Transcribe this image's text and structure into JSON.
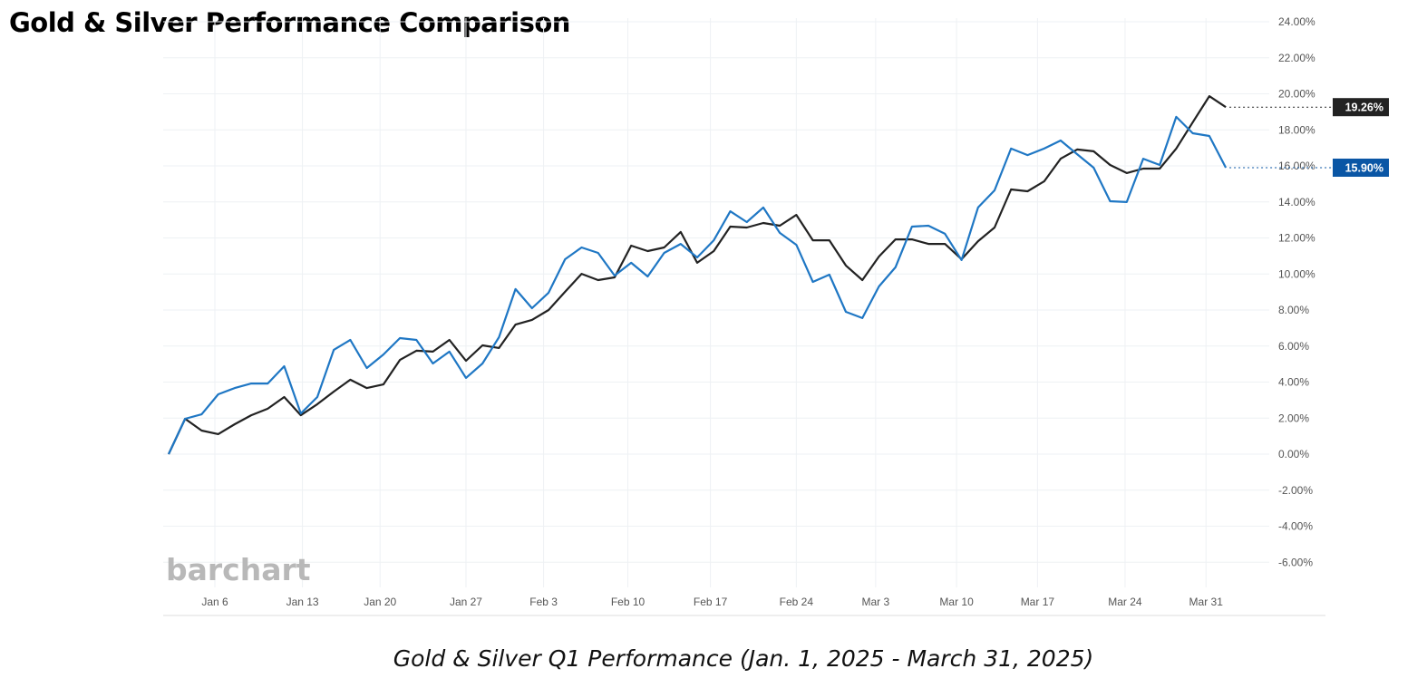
{
  "chart_data": {
    "type": "line",
    "title": "Gold & Silver Performance Comparison",
    "caption": "Gold & Silver Q1 Performance (Jan. 1, 2025 - March 31, 2025)",
    "watermark": "barchart",
    "ylim": [
      -6,
      24
    ],
    "y_ticks": [
      -6,
      -4,
      -2,
      0,
      2,
      4,
      6,
      8,
      10,
      12,
      14,
      16,
      18,
      20,
      22,
      24
    ],
    "y_tick_format": "percent_2dp",
    "x_ticks": [
      {
        "label": "Jan 6",
        "index": 2.8
      },
      {
        "label": "Jan 13",
        "index": 8.1
      },
      {
        "label": "Jan 20",
        "index": 12.8
      },
      {
        "label": "Jan 27",
        "index": 18.0
      },
      {
        "label": "Feb 3",
        "index": 22.7
      },
      {
        "label": "Feb 10",
        "index": 27.8
      },
      {
        "label": "Feb 17",
        "index": 32.8
      },
      {
        "label": "Feb 24",
        "index": 38.0
      },
      {
        "label": "Mar 3",
        "index": 42.8
      },
      {
        "label": "Mar 10",
        "index": 47.7
      },
      {
        "label": "Mar 17",
        "index": 52.6
      },
      {
        "label": "Mar 24",
        "index": 57.9
      },
      {
        "label": "Mar 31",
        "index": 62.8
      }
    ],
    "grid": true,
    "series": [
      {
        "color": "#222222",
        "last_label": "19.26%",
        "values": [
          0,
          1.96,
          1.31,
          1.11,
          1.66,
          2.16,
          2.52,
          3.17,
          2.16,
          2.77,
          3.47,
          4.13,
          3.67,
          3.87,
          5.23,
          5.74,
          5.69,
          6.34,
          5.18,
          6.04,
          5.89,
          7.19,
          7.45,
          8.0,
          9.01,
          10.01,
          9.66,
          9.81,
          11.57,
          11.27,
          11.47,
          12.33,
          10.62,
          11.27,
          12.63,
          12.58,
          12.83,
          12.68,
          13.28,
          11.87,
          11.87,
          10.47,
          9.66,
          10.97,
          11.92,
          11.92,
          11.67,
          11.67,
          10.82,
          11.82,
          12.58,
          14.69,
          14.59,
          15.14,
          16.4,
          16.91,
          16.81,
          16.05,
          15.6,
          15.85,
          15.85,
          16.96,
          18.42,
          19.87,
          19.26
        ]
      },
      {
        "color": "#1f77c4",
        "label_bg": "#0a56a5",
        "last_label": "15.90%",
        "values": [
          0,
          1.96,
          2.21,
          3.32,
          3.67,
          3.92,
          3.92,
          4.88,
          2.26,
          3.17,
          5.79,
          6.34,
          4.78,
          5.53,
          6.44,
          6.34,
          5.03,
          5.69,
          4.23,
          5.03,
          6.49,
          9.16,
          8.1,
          8.96,
          10.82,
          11.47,
          11.17,
          9.91,
          10.62,
          9.86,
          11.17,
          11.67,
          10.92,
          11.87,
          13.48,
          12.88,
          13.69,
          12.28,
          11.62,
          9.56,
          9.96,
          7.9,
          7.55,
          9.31,
          10.37,
          12.63,
          12.68,
          12.23,
          10.77,
          13.69,
          14.64,
          16.96,
          16.6,
          16.96,
          17.41,
          16.65,
          15.9,
          14.04,
          13.99,
          16.4,
          16.05,
          18.72,
          17.81,
          17.66,
          15.9
        ]
      }
    ]
  }
}
